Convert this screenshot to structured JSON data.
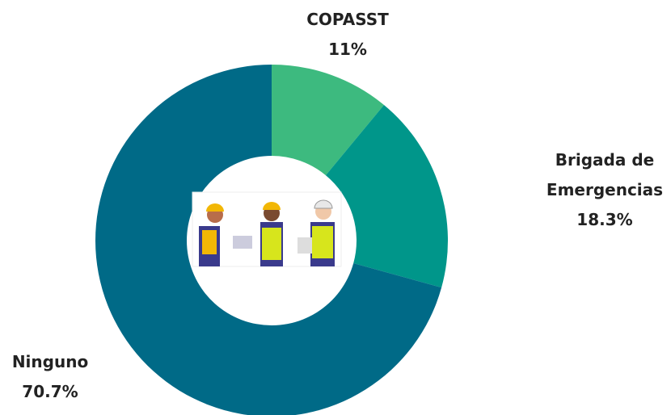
{
  "chart_data": {
    "type": "donut",
    "categories": [
      "COPASST",
      "Brigada de Emergencias",
      "Ninguno"
    ],
    "values": [
      11,
      18.3,
      70.7
    ],
    "value_labels": [
      "11%",
      "18.3%",
      "70.7%"
    ],
    "colors": [
      "#3dba7f",
      "#00968a",
      "#006a87"
    ]
  }
}
